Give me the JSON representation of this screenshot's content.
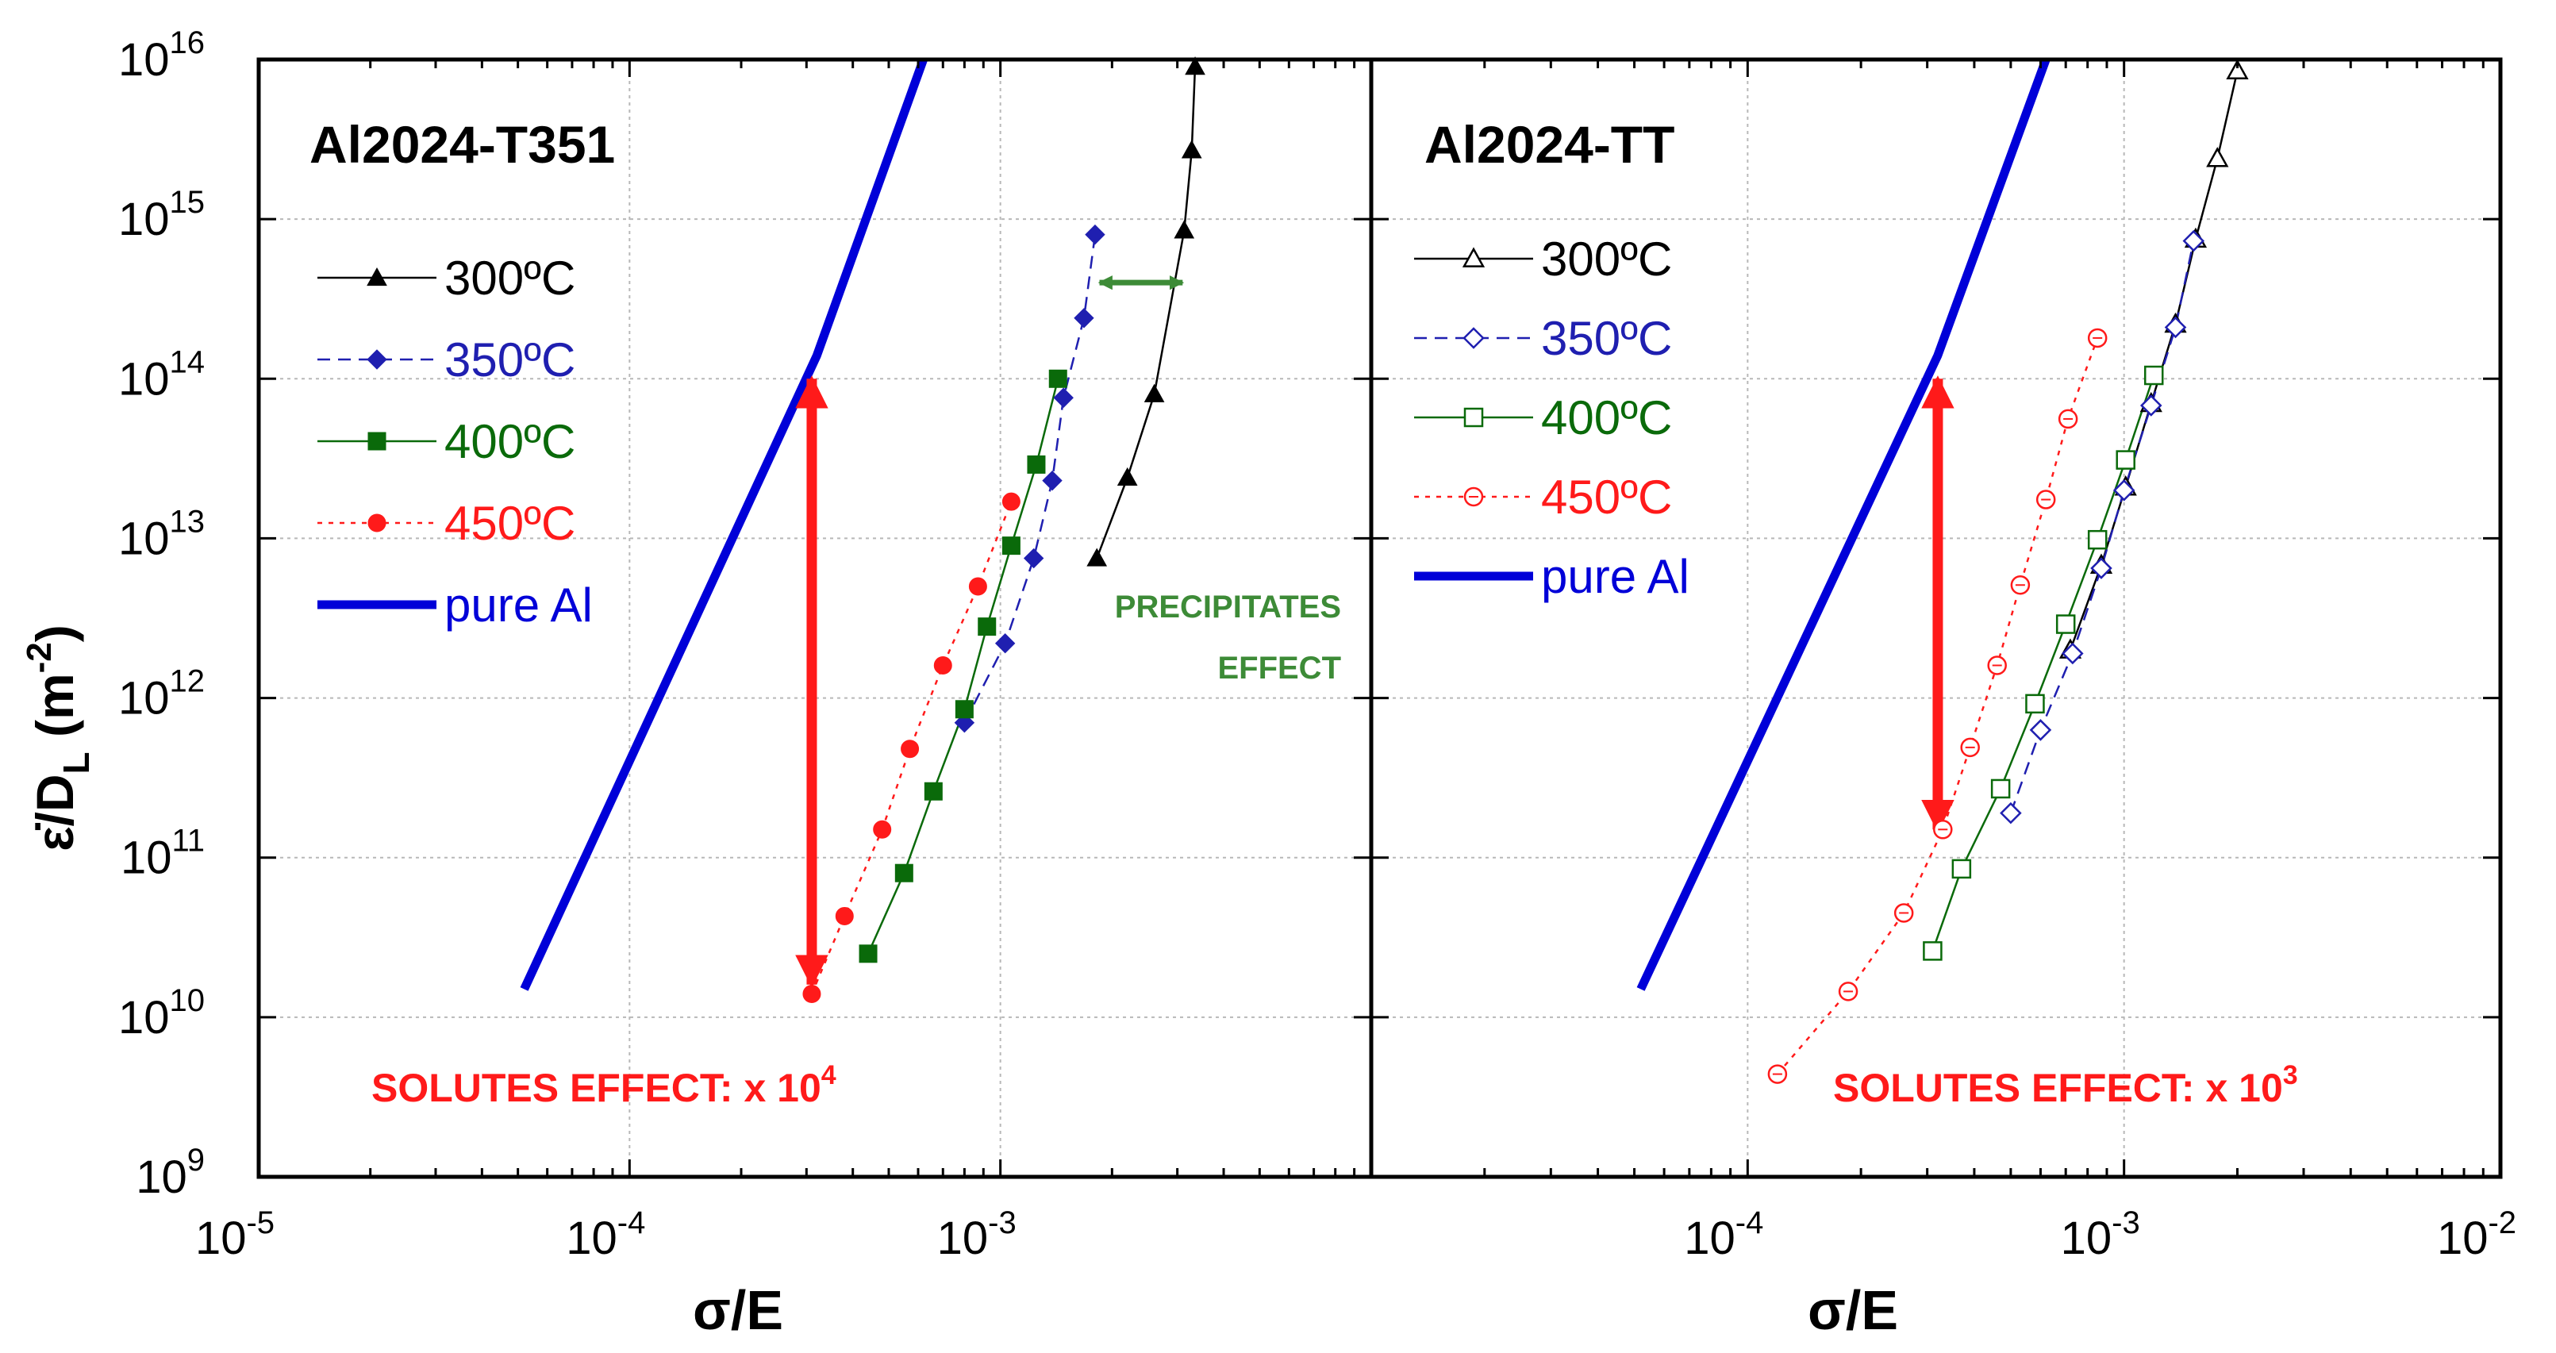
{
  "colors": {
    "black": "#000000",
    "blue_dark": "#1f1fb0",
    "blue_pure": "#0000d8",
    "green": "#0a6a0a",
    "green_annot": "#3d8b37",
    "red": "#ff1a1a",
    "grid": "#b8b8b8"
  },
  "chart_data": [
    {
      "type": "scatter",
      "scale": "log-log",
      "title": "Al2024-T351",
      "xlabel": "σ/E",
      "ylabel": "ε̇/D_L (m^-2)",
      "xlim": [
        1e-05,
        0.01
      ],
      "ylim": [
        1000000000.0,
        1e+16
      ],
      "grid": true,
      "legend_position": "top-left",
      "x_tick_labels": [
        {
          "base": "10",
          "exp": "-5"
        },
        {
          "base": "10",
          "exp": "-4"
        },
        {
          "base": "10",
          "exp": "-3"
        }
      ],
      "y_tick_labels": [
        {
          "base": "10",
          "exp": "9"
        },
        {
          "base": "10",
          "exp": "10"
        },
        {
          "base": "10",
          "exp": "11"
        },
        {
          "base": "10",
          "exp": "12"
        },
        {
          "base": "10",
          "exp": "13"
        },
        {
          "base": "10",
          "exp": "14"
        },
        {
          "base": "10",
          "exp": "15"
        },
        {
          "base": "10",
          "exp": "16"
        }
      ],
      "series": [
        {
          "name": "300ºC",
          "marker": "triangle",
          "filled": true,
          "color": "#000000",
          "dash": "solid",
          "x": [
            0.00182,
            0.0022,
            0.0026,
            0.00313,
            0.00328,
            0.00335
          ],
          "y": [
            7500000000000.0,
            24000000000000.0,
            80000000000000.0,
            850000000000000.0,
            2700000000000000.0,
            9000000000000000.0
          ]
        },
        {
          "name": "350ºC",
          "marker": "diamond",
          "filled": true,
          "color": "#1f1fb0",
          "dash": "dashed",
          "x": [
            0.0008,
            0.00103,
            0.00123,
            0.00138,
            0.00148,
            0.00168,
            0.0018
          ],
          "y": [
            700000000000.0,
            2200000000000.0,
            7500000000000.0,
            23000000000000.0,
            76000000000000.0,
            240000000000000.0,
            800000000000000.0
          ]
        },
        {
          "name": "400ºC",
          "marker": "square",
          "filled": true,
          "color": "#0a6a0a",
          "dash": "solid",
          "x": [
            0.00044,
            0.00055,
            0.00066,
            0.0008,
            0.00092,
            0.00107,
            0.00125,
            0.00143
          ],
          "y": [
            25000000000.0,
            80000000000.0,
            260000000000.0,
            850000000000.0,
            2800000000000.0,
            9000000000000.0,
            29000000000000.0,
            100000000000000.0
          ]
        },
        {
          "name": "450ºC",
          "marker": "circle",
          "filled": true,
          "color": "#ff1a1a",
          "dash": "dotted",
          "x": [
            0.00031,
            0.00038,
            0.00048,
            0.00057,
            0.0007,
            0.00087,
            0.00107
          ],
          "y": [
            14000000000.0,
            43000000000.0,
            150000000000.0,
            480000000000.0,
            1600000000000.0,
            5000000000000.0,
            17000000000000.0
          ]
        },
        {
          "name": "pure Al",
          "marker": "none",
          "color": "#0000d8",
          "dash": "solid",
          "thick": true,
          "x": [
            5.2e-05,
            0.00032,
            0.00062
          ],
          "y": [
            15000000000.0,
            140000000000000.0,
            1e+16
          ]
        }
      ],
      "annotations": [
        {
          "kind": "double-arrow-vertical",
          "color": "#ff1a1a",
          "x": 0.00031,
          "y_from": 16000000000.0,
          "y_to": 100000000000000.0
        },
        {
          "kind": "double-arrow-horizontal",
          "color": "#3d8b37",
          "y": 400000000000000.0,
          "x_from": 0.00185,
          "x_to": 0.0031
        },
        {
          "kind": "text",
          "line1": "PRECIPITATES",
          "line2": "EFFECT",
          "color": "#3d8b37"
        },
        {
          "kind": "text",
          "text": "SOLUTES EFFECT:  x 10",
          "sup": "4",
          "color": "#ff1a1a"
        }
      ]
    },
    {
      "type": "scatter",
      "scale": "log-log",
      "title": "Al2024-TT",
      "xlabel": "σ/E",
      "ylabel": "",
      "xlim": [
        1e-05,
        0.01
      ],
      "ylim": [
        1000000000.0,
        1e+16
      ],
      "grid": true,
      "legend_position": "top-left",
      "x_tick_labels": [
        {
          "base": "10",
          "exp": "-4"
        },
        {
          "base": "10",
          "exp": "-3"
        },
        {
          "base": "10",
          "exp": "-2"
        }
      ],
      "series": [
        {
          "name": "300ºC",
          "marker": "triangle",
          "filled": false,
          "color": "#000000",
          "dash": "solid",
          "x": [
            0.00072,
            0.00087,
            0.00101,
            0.00118,
            0.00137,
            0.00155,
            0.00177,
            0.002
          ],
          "y": [
            2000000000000.0,
            6800000000000.0,
            21000000000000.0,
            70000000000000.0,
            220000000000000.0,
            750000000000000.0,
            2400000000000000.0,
            8500000000000000.0
          ]
        },
        {
          "name": "350ºC",
          "marker": "diamond",
          "filled": false,
          "color": "#1f1fb0",
          "dash": "dashed",
          "x": [
            0.0005,
            0.0006,
            0.00073,
            0.00087,
            0.001,
            0.00118,
            0.00137,
            0.00153
          ],
          "y": [
            190000000000.0,
            630000000000.0,
            1900000000000.0,
            6500000000000.0,
            20000000000000.0,
            68000000000000.0,
            210000000000000.0,
            730000000000000.0
          ]
        },
        {
          "name": "400ºC",
          "marker": "square",
          "filled": false,
          "color": "#0a6a0a",
          "dash": "solid",
          "x": [
            0.00031,
            0.00037,
            0.00047,
            0.00058,
            0.0007,
            0.00085,
            0.00101,
            0.0012
          ],
          "y": [
            26000000000.0,
            85000000000.0,
            270000000000.0,
            920000000000.0,
            2900000000000.0,
            9800000000000.0,
            31000000000000.0,
            105000000000000.0
          ]
        },
        {
          "name": "450ºC",
          "marker": "circle",
          "filled": false,
          "color": "#ff1a1a",
          "dash": "dotted",
          "x": [
            0.00012,
            0.000185,
            0.00026,
            0.00033,
            0.00039,
            0.00046,
            0.00053,
            0.00062,
            0.00071,
            0.00085
          ],
          "y": [
            4400000000.0,
            14500000000.0,
            45000000000.0,
            150000000000.0,
            490000000000.0,
            1600000000000.0,
            5100000000000.0,
            17500000000000.0,
            56000000000000.0,
            180000000000000.0
          ]
        },
        {
          "name": "pure Al",
          "marker": "none",
          "color": "#0000d8",
          "dash": "solid",
          "thick": true,
          "x": [
            5.2e-05,
            0.00032,
            0.00062
          ],
          "y": [
            15000000000.0,
            140000000000000.0,
            1e+16
          ]
        }
      ],
      "annotations": [
        {
          "kind": "double-arrow-vertical",
          "color": "#ff1a1a",
          "x": 0.00032,
          "y_from": 150000000000.0,
          "y_to": 100000000000000.0
        },
        {
          "kind": "text",
          "text": "SOLUTES EFFECT:  x 10",
          "sup": "3",
          "color": "#ff1a1a"
        }
      ]
    }
  ]
}
